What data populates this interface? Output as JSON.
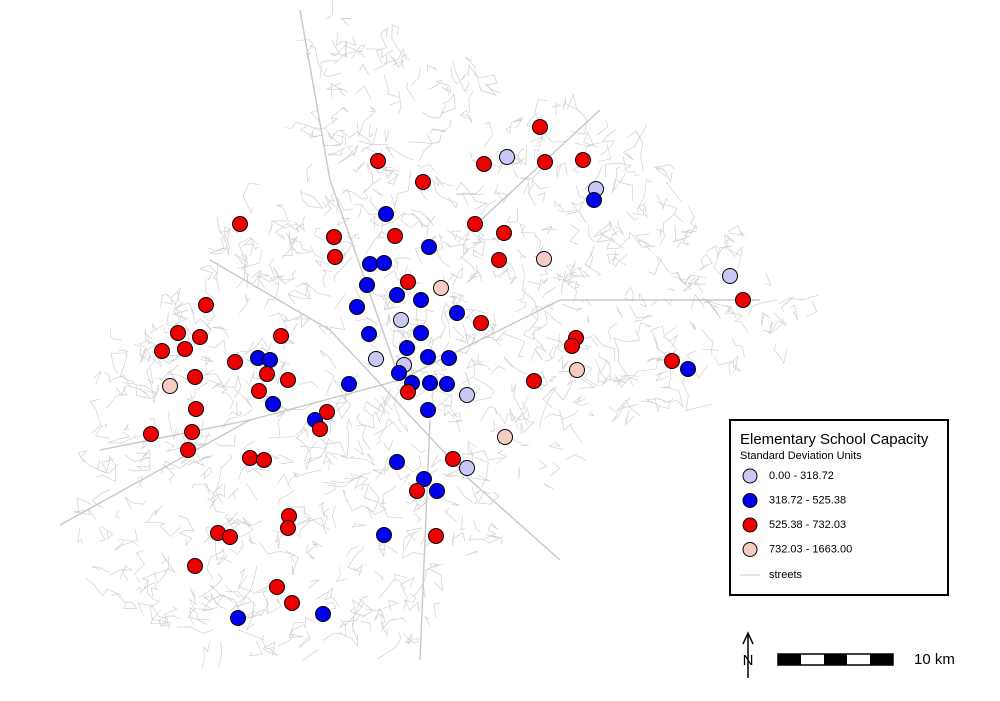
{
  "legend": {
    "title": "Elementary School Capacity",
    "subtitle": "Standard Deviation Units",
    "items": [
      {
        "label": "0.00 - 318.72",
        "color": "#c8c8f2"
      },
      {
        "label": "318.72 - 525.38",
        "color": "#0000ee"
      },
      {
        "label": "525.38 - 732.03",
        "color": "#ee0000"
      },
      {
        "label": "732.03 - 1663.00",
        "color": "#f6cbc2"
      }
    ],
    "streets_label": "streets"
  },
  "scale_bar": {
    "label": "10 km"
  },
  "north_arrow": {
    "label": "N"
  }
}
